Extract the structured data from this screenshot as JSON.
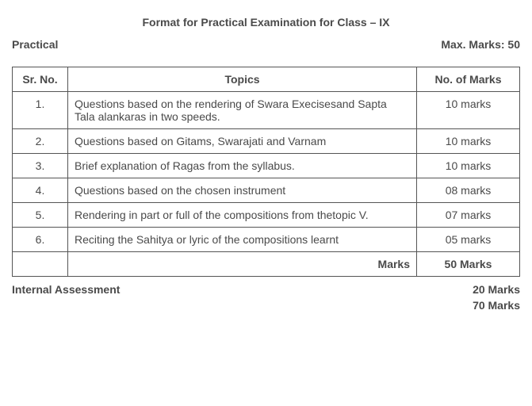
{
  "title": "Format for Practical Examination for Class – IX",
  "header_left": "Practical",
  "header_right": "Max. Marks: 50",
  "table": {
    "headers": {
      "srno": "Sr. No.",
      "topics": "Topics",
      "marks": "No. of Marks"
    },
    "rows": [
      {
        "srno": "1.",
        "topic": "Questions based on the rendering of Swara Execisesand Sapta Tala alankaras in two speeds.",
        "marks": "10 marks"
      },
      {
        "srno": "2.",
        "topic": "Questions based on Gitams, Swarajati and Varnam",
        "marks": "10 marks"
      },
      {
        "srno": "3.",
        "topic": "Brief explanation of Ragas from the syllabus.",
        "marks": "10 marks"
      },
      {
        "srno": "4.",
        "topic": "Questions based on the chosen instrument",
        "marks": "08 marks"
      },
      {
        "srno": "5.",
        "topic": "Rendering in part or full of the compositions from thetopic V.",
        "marks": "07 marks"
      },
      {
        "srno": "6.",
        "topic": "Reciting the Sahitya or lyric of the compositions learnt",
        "marks": "05 marks"
      }
    ],
    "footer": {
      "label": "Marks",
      "total": "50 Marks"
    }
  },
  "bottom": {
    "left": "Internal Assessment",
    "right1": "20 Marks",
    "right2": "70 Marks"
  },
  "styling": {
    "font_family": "Arial, sans-serif",
    "body_font_size": 14,
    "text_color": "#4a4a4a",
    "border_color": "#555555",
    "background_color": "#ffffff",
    "col_srno_width": 70,
    "col_marks_width": 130
  }
}
